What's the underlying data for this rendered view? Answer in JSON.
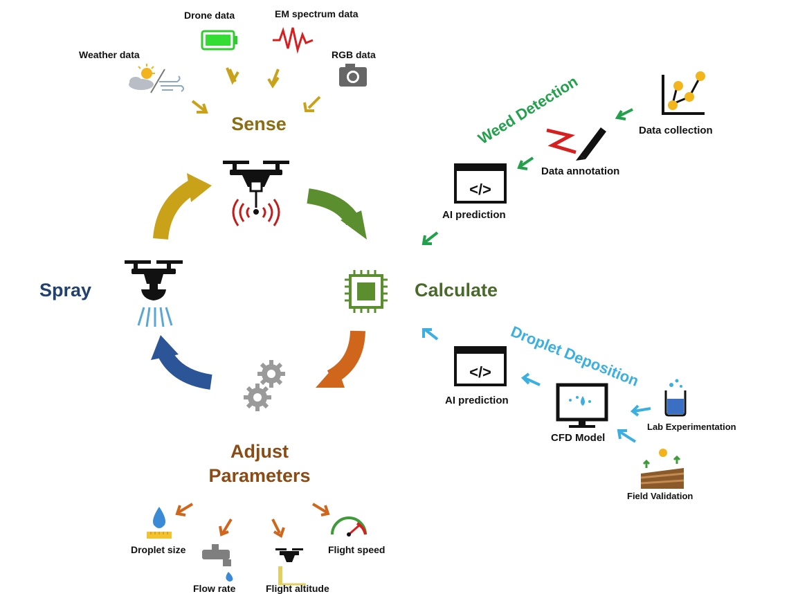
{
  "cycle": {
    "sense": "Sense",
    "calculate": "Calculate",
    "adjust_line1": "Adjust",
    "adjust_line2": "Parameters",
    "spray": "Spray"
  },
  "sense_inputs": {
    "drone": "Drone data",
    "em": "EM spectrum data",
    "weather": "Weather data",
    "rgb": "RGB data"
  },
  "weed_detection": {
    "title": "Weed Detection",
    "data_collection": "Data collection",
    "data_annotation": "Data annotation",
    "ai_prediction": "AI prediction"
  },
  "droplet_deposition": {
    "title": "Droplet Deposition",
    "ai_prediction": "AI prediction",
    "cfd_model": "CFD Model",
    "lab": "Lab Experimentation",
    "field": "Field Validation"
  },
  "parameters": {
    "droplet_size": "Droplet size",
    "flow_rate": "Flow rate",
    "flight_altitude": "Flight altitude",
    "flight_speed": "Flight speed"
  },
  "colors": {
    "sense": "#8b6d14",
    "calculate": "#4a6a2c",
    "adjust": "#8a4b14",
    "spray": "#22416e",
    "weed_green": "#22a04b",
    "droplet_blue": "#3bb0e0",
    "arrow_gold": "#c9a21a",
    "arrow_green": "#5a8e2e",
    "arrow_orange": "#d0661c",
    "arrow_blue": "#2c5597"
  }
}
